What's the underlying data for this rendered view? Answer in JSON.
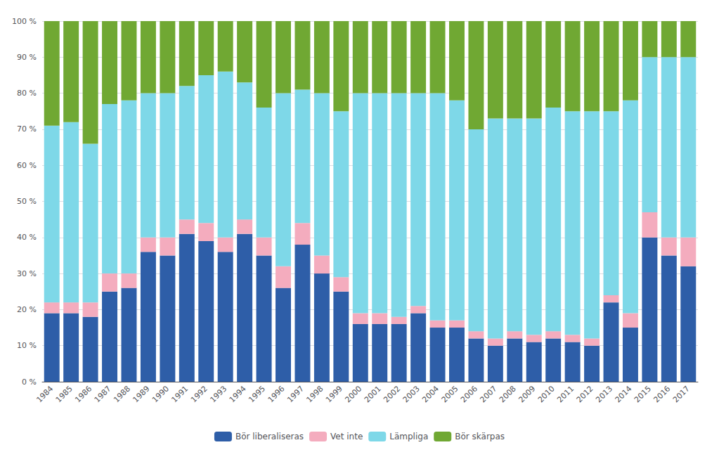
{
  "chart_data": {
    "type": "bar",
    "stacked": true,
    "grid": true,
    "legend": "bottom",
    "categories": [
      "1984",
      "1985",
      "1986",
      "1987",
      "1988",
      "1989",
      "1990",
      "1991",
      "1992",
      "1993",
      "1994",
      "1995",
      "1996",
      "1997",
      "1998",
      "1999",
      "2000",
      "2001",
      "2002",
      "2003",
      "2004",
      "2005",
      "2006",
      "2007",
      "2008",
      "2009",
      "2010",
      "2011",
      "2012",
      "2013",
      "2014",
      "2015",
      "2016",
      "2017"
    ],
    "series": [
      {
        "name": "Bör liberaliseras",
        "color": "#2E5EA8",
        "values": [
          19,
          19,
          18,
          25,
          26,
          36,
          35,
          41,
          39,
          36,
          41,
          35,
          26,
          38,
          30,
          25,
          16,
          16,
          16,
          19,
          15,
          15,
          12,
          10,
          12,
          11,
          12,
          11,
          10,
          22,
          15,
          40,
          35,
          32
        ]
      },
      {
        "name": "Vet inte",
        "color": "#F4ACBE",
        "values": [
          3,
          3,
          4,
          5,
          4,
          4,
          5,
          4,
          5,
          4,
          4,
          5,
          6,
          6,
          5,
          4,
          3,
          3,
          2,
          2,
          2,
          2,
          2,
          2,
          2,
          2,
          2,
          2,
          2,
          2,
          4,
          7,
          5,
          8
        ]
      },
      {
        "name": "Lämpliga",
        "color": "#7ED8E8",
        "values": [
          49,
          50,
          44,
          47,
          48,
          40,
          40,
          37,
          41,
          46,
          38,
          36,
          48,
          37,
          45,
          46,
          61,
          61,
          62,
          59,
          63,
          61,
          56,
          61,
          59,
          60,
          62,
          62,
          63,
          51,
          59,
          43,
          50,
          50
        ]
      },
      {
        "name": "Bör skärpas",
        "color": "#70A833",
        "values": [
          29,
          28,
          34,
          23,
          22,
          20,
          20,
          18,
          15,
          14,
          17,
          24,
          20,
          19,
          20,
          25,
          20,
          20,
          20,
          20,
          20,
          22,
          30,
          27,
          27,
          27,
          24,
          25,
          25,
          25,
          22,
          10,
          10,
          10
        ]
      }
    ],
    "ylim": [
      0,
      100
    ],
    "yticks": [
      {
        "value": 0,
        "label": "0 %"
      },
      {
        "value": 10,
        "label": "10 %"
      },
      {
        "value": 20,
        "label": "20 %"
      },
      {
        "value": 30,
        "label": "30 %"
      },
      {
        "value": 40,
        "label": "40 %"
      },
      {
        "value": 50,
        "label": "50 %"
      },
      {
        "value": 60,
        "label": "60 %"
      },
      {
        "value": 70,
        "label": "70 %"
      },
      {
        "value": 80,
        "label": "80 %"
      },
      {
        "value": 90,
        "label": "90 %"
      },
      {
        "value": 100,
        "label": "100 %"
      }
    ]
  }
}
